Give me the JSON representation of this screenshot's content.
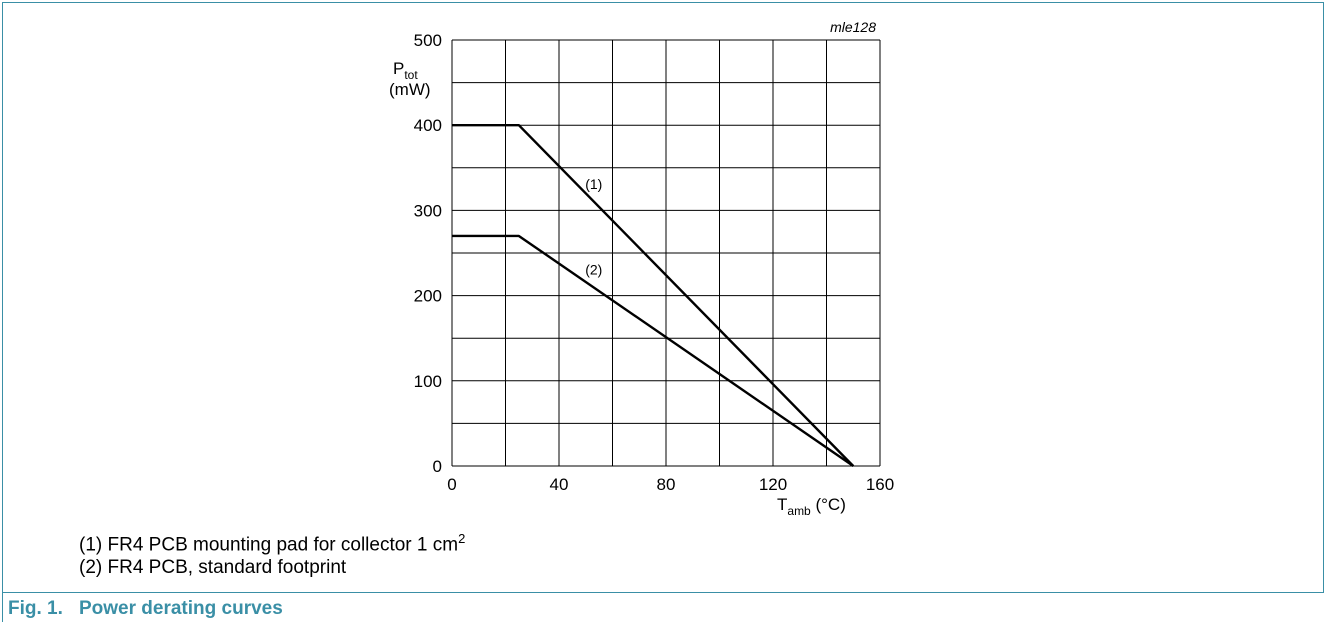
{
  "chart_data": {
    "type": "line",
    "title": "",
    "watermark": "mle128",
    "ylabel": {
      "main": "P",
      "sub": "tot",
      "unit": "(mW)"
    },
    "xlabel": {
      "main": "T",
      "sub": "amb",
      "unit": " (°C)"
    },
    "xlim": [
      0,
      160
    ],
    "ylim": [
      0,
      500
    ],
    "x_ticks": [
      0,
      40,
      80,
      120,
      160
    ],
    "y_ticks": [
      0,
      100,
      200,
      300,
      400,
      500
    ],
    "x_grid_step": 20,
    "y_grid_step": 50,
    "grid": true,
    "series": [
      {
        "name": "(1)",
        "x": [
          0,
          25,
          150
        ],
        "y": [
          400,
          400,
          0
        ],
        "label_at": {
          "x": 53,
          "y": 325
        }
      },
      {
        "name": "(2)",
        "x": [
          0,
          25,
          150
        ],
        "y": [
          270,
          270,
          0
        ],
        "label_at": {
          "x": 53,
          "y": 225
        }
      }
    ]
  },
  "legend": [
    {
      "text": "(1) FR4 PCB mounting pad for collector 1 cm",
      "sup": "2"
    },
    {
      "text": "(2) FR4 PCB, standard footprint",
      "sup": ""
    }
  ],
  "figure": {
    "number": "Fig. 1.",
    "title": "Power derating curves"
  },
  "colors": {
    "accent": "#3a8fa6",
    "line": "#000000",
    "grid": "#000000"
  }
}
